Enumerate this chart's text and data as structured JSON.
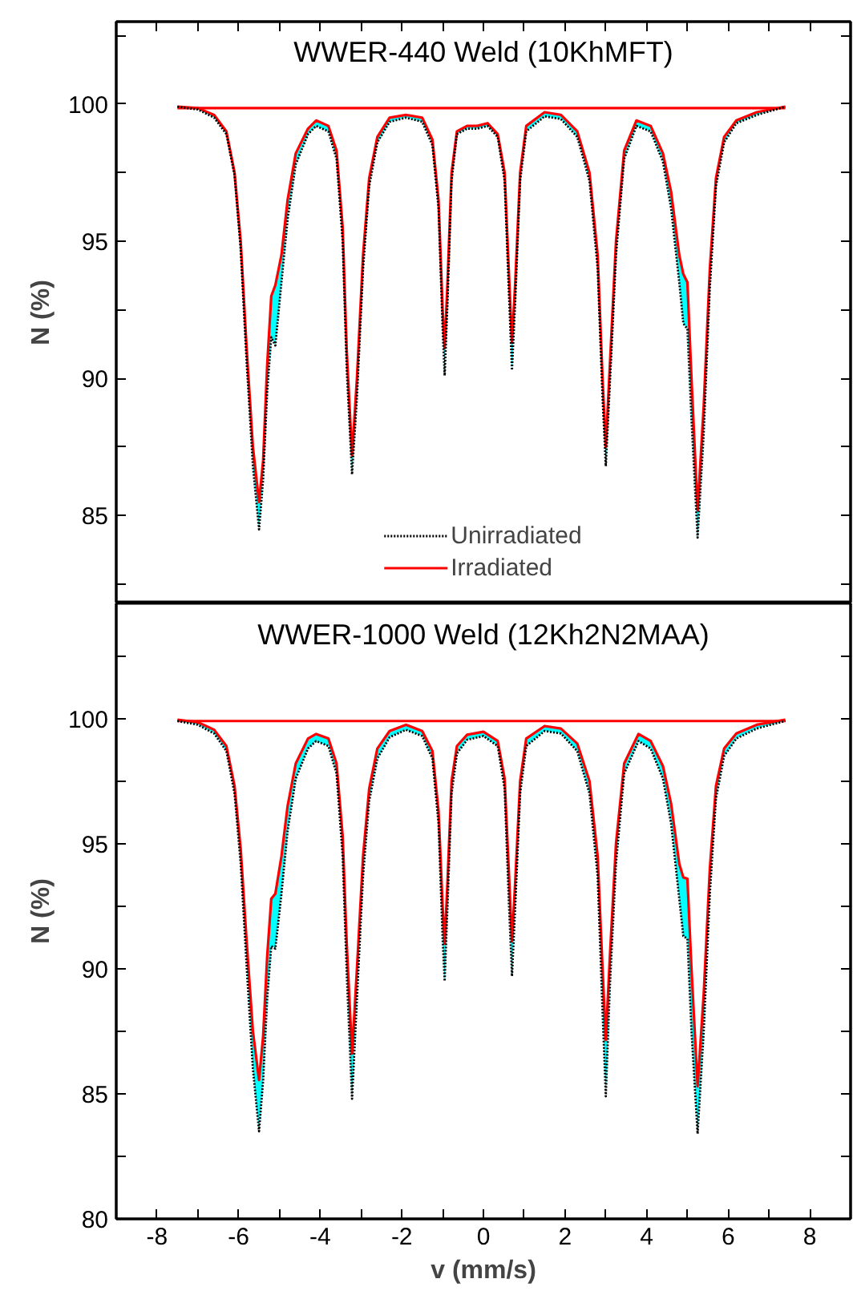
{
  "chart_data": [
    {
      "type": "line",
      "title": "WWER-440 Weld (10KhMFT)",
      "ylabel": "N (%)",
      "xlim": [
        -9,
        9
      ],
      "ylim": [
        81.8,
        103
      ],
      "xticks": [
        -8,
        {
          "value": -7,
          "label": null
        },
        -6,
        {
          "value": -5,
          "label": null
        },
        -4,
        {
          "value": -3,
          "label": null
        },
        -2,
        {
          "value": -1,
          "label": null
        },
        0,
        {
          "value": 1,
          "label": null
        },
        2,
        {
          "value": 3,
          "label": null
        },
        4,
        {
          "value": 5,
          "label": null
        },
        6,
        {
          "value": 7,
          "label": null
        },
        8
      ],
      "yticks": [
        {
          "value": 82.5,
          "label": null
        },
        85,
        {
          "value": 87.5,
          "label": null
        },
        90,
        {
          "value": 92.5,
          "label": null
        },
        95,
        {
          "value": 97.5,
          "label": null
        },
        100,
        {
          "value": 102.5,
          "label": null
        }
      ],
      "tick_labels": "y",
      "grid": false,
      "legend": "bottom",
      "x": [
        -7.5,
        -7.0,
        -6.6,
        -6.3,
        -6.1,
        -5.95,
        -5.8,
        -5.65,
        -5.5,
        -5.4,
        -5.3,
        -5.2,
        -5.1,
        -4.95,
        -4.8,
        -4.6,
        -4.3,
        -4.1,
        -3.8,
        -3.6,
        -3.45,
        -3.35,
        -3.22,
        -3.1,
        -2.95,
        -2.8,
        -2.6,
        -2.3,
        -1.9,
        -1.5,
        -1.25,
        -1.1,
        -1.0,
        -0.95,
        -0.88,
        -0.78,
        -0.65,
        -0.4,
        -0.15,
        0.1,
        0.35,
        0.52,
        0.62,
        0.7,
        0.78,
        0.9,
        1.05,
        1.5,
        1.9,
        2.3,
        2.6,
        2.8,
        2.92,
        3.0,
        3.1,
        3.25,
        3.45,
        3.75,
        4.1,
        4.4,
        4.6,
        4.8,
        4.9,
        5.0,
        5.1,
        5.25,
        5.4,
        5.55,
        5.7,
        5.9,
        6.2,
        6.7,
        7.4
      ],
      "series": [
        {
          "name": "Unirradiated",
          "color": "#000000",
          "line_style": "dotted",
          "values": [
            99.9,
            99.8,
            99.5,
            98.9,
            97.4,
            94.7,
            90.5,
            86.8,
            84.5,
            86.3,
            89.5,
            91.5,
            91.2,
            93.5,
            95.8,
            97.8,
            98.9,
            99.2,
            99.0,
            98.0,
            95,
            90.3,
            86.5,
            89.3,
            94,
            97,
            98.6,
            99.35,
            99.5,
            99.35,
            98.5,
            96.2,
            91.8,
            90.1,
            92.8,
            97.2,
            98.9,
            99.1,
            99.1,
            99.2,
            98.8,
            97.2,
            93.3,
            90.3,
            92.8,
            97.2,
            99.0,
            99.55,
            99.45,
            98.8,
            97.2,
            94,
            89.3,
            86.8,
            89.8,
            94.5,
            98.0,
            99.2,
            99.0,
            97.9,
            96.2,
            93.5,
            92.0,
            91.8,
            88.5,
            84.2,
            88,
            93.3,
            97,
            98.6,
            99.3,
            99.6,
            99.9
          ]
        },
        {
          "name": "Irradiated",
          "color": "#ff0000",
          "line_style": "solid",
          "values": [
            99.9,
            99.85,
            99.6,
            99.0,
            97.5,
            95,
            91,
            87.5,
            85.5,
            87,
            90.5,
            93.0,
            93.4,
            94.5,
            96.5,
            98.2,
            99.1,
            99.4,
            99.2,
            98.3,
            95.5,
            91,
            87.2,
            90,
            94.5,
            97.3,
            98.8,
            99.5,
            99.6,
            99.5,
            98.7,
            96.5,
            92.5,
            91.1,
            93.5,
            97.5,
            99.0,
            99.2,
            99.2,
            99.3,
            98.9,
            97.5,
            94,
            91.3,
            93.5,
            97.5,
            99.2,
            99.7,
            99.6,
            99.0,
            97.5,
            94.5,
            90,
            87.5,
            90.5,
            95,
            98.3,
            99.4,
            99.2,
            98.2,
            96.8,
            94.5,
            93.8,
            93.5,
            90,
            85.2,
            89,
            94,
            97.3,
            98.8,
            99.4,
            99.7,
            99.9
          ],
          "lower": [
            99.9,
            99.8,
            99.5,
            98.9,
            97.4,
            94.7,
            90.5,
            86.8,
            84.5,
            86.3,
            89.5,
            91.5,
            91.2,
            93.5,
            95.8,
            97.8,
            98.9,
            99.2,
            99.0,
            98.0,
            95,
            90.3,
            86.5,
            89.3,
            94,
            97,
            98.6,
            99.35,
            99.5,
            99.35,
            98.5,
            96.2,
            91.8,
            90.1,
            92.8,
            97.2,
            98.9,
            99.1,
            99.1,
            99.2,
            98.8,
            97.2,
            93.3,
            90.3,
            92.8,
            97.2,
            99.0,
            99.55,
            99.45,
            98.8,
            97.2,
            94,
            89.3,
            86.8,
            89.8,
            94.5,
            98.0,
            99.2,
            99.0,
            97.9,
            96.2,
            93.5,
            92.0,
            91.8,
            88.5,
            84.2,
            88,
            93.3,
            97,
            98.6,
            99.3,
            99.6,
            99.9
          ],
          "upper": [
            99.9,
            99.85,
            99.6,
            99.0,
            97.5,
            95,
            91,
            87.5,
            85.5,
            87,
            90.5,
            93.0,
            93.4,
            94.5,
            96.5,
            98.2,
            99.1,
            99.4,
            99.2,
            98.3,
            95.5,
            91,
            87.2,
            90,
            94.5,
            97.3,
            98.8,
            99.5,
            99.6,
            99.5,
            98.7,
            96.5,
            92.5,
            91.1,
            93.5,
            97.5,
            99.0,
            99.2,
            99.2,
            99.3,
            98.9,
            97.5,
            94,
            91.3,
            93.5,
            97.5,
            99.2,
            99.7,
            99.6,
            99.0,
            97.5,
            94.5,
            90,
            87.5,
            90.5,
            95,
            98.3,
            99.4,
            99.2,
            98.2,
            96.8,
            94.5,
            93.8,
            93.5,
            90,
            85.2,
            89,
            94,
            97.3,
            98.8,
            99.4,
            99.7,
            99.9
          ]
        }
      ],
      "ref_lines": [
        {
          "axis": "y",
          "value": 99.85,
          "color": "#ff0000",
          "line_style": "solid"
        }
      ]
    },
    {
      "type": "line",
      "title": "WWER-1000 Weld (12Kh2N2MAA)",
      "xlabel": "v (mm/s)",
      "ylabel": "N (%)",
      "xlim": [
        -9,
        9
      ],
      "ylim": [
        80,
        104.6
      ],
      "xticks": [
        -8,
        {
          "value": -7,
          "label": null
        },
        -6,
        {
          "value": -5,
          "label": null
        },
        -4,
        {
          "value": -3,
          "label": null
        },
        -2,
        {
          "value": -1,
          "label": null
        },
        0,
        {
          "value": 1,
          "label": null
        },
        2,
        {
          "value": 3,
          "label": null
        },
        4,
        {
          "value": 5,
          "label": null
        },
        6,
        {
          "value": 7,
          "label": null
        },
        8
      ],
      "yticks": [
        80,
        {
          "value": 82.5,
          "label": null
        },
        85,
        {
          "value": 87.5,
          "label": null
        },
        90,
        {
          "value": 92.5,
          "label": null
        },
        95,
        {
          "value": 97.5,
          "label": null
        },
        100,
        {
          "value": 102.5,
          "label": null
        }
      ],
      "grid": false,
      "x": [
        -7.5,
        -7.0,
        -6.6,
        -6.3,
        -6.1,
        -5.95,
        -5.8,
        -5.65,
        -5.5,
        -5.4,
        -5.3,
        -5.2,
        -5.1,
        -4.95,
        -4.8,
        -4.6,
        -4.3,
        -4.1,
        -3.8,
        -3.6,
        -3.45,
        -3.35,
        -3.22,
        -3.1,
        -2.95,
        -2.8,
        -2.6,
        -2.3,
        -1.9,
        -1.5,
        -1.25,
        -1.1,
        -1.0,
        -0.95,
        -0.88,
        -0.78,
        -0.65,
        -0.4,
        0.0,
        0.35,
        0.52,
        0.62,
        0.7,
        0.78,
        0.9,
        1.05,
        1.5,
        1.9,
        2.3,
        2.6,
        2.8,
        2.92,
        3.0,
        3.1,
        3.25,
        3.45,
        3.8,
        4.1,
        4.4,
        4.6,
        4.8,
        4.9,
        5.0,
        5.1,
        5.25,
        5.4,
        5.55,
        5.7,
        5.9,
        6.2,
        6.7,
        7.4
      ],
      "series": [
        {
          "color": "#000000",
          "line_style": "dotted",
          "values": [
            99.9,
            99.75,
            99.4,
            98.7,
            97.0,
            94.2,
            90.0,
            86.0,
            83.5,
            85.5,
            88.8,
            90.9,
            90.8,
            93.0,
            95.5,
            97.6,
            98.8,
            99.1,
            98.9,
            97.8,
            94.5,
            89.8,
            84.8,
            88.8,
            93.7,
            96.7,
            98.4,
            99.25,
            99.55,
            99.3,
            98.4,
            95.8,
            91.2,
            89.5,
            92.5,
            97.0,
            98.6,
            99.15,
            99.3,
            98.9,
            97.2,
            92.8,
            89.7,
            92.5,
            97.0,
            98.9,
            99.5,
            99.4,
            98.7,
            97.0,
            93.7,
            88.3,
            84.9,
            89.3,
            94.2,
            97.8,
            99.1,
            98.8,
            97.6,
            95.8,
            92.8,
            91.3,
            91.2,
            87.5,
            83.4,
            87.5,
            93.0,
            96.8,
            98.5,
            99.2,
            99.6,
            99.9
          ]
        },
        {
          "color": "#ff0000",
          "line_style": "solid",
          "values": [
            99.95,
            99.85,
            99.55,
            98.9,
            97.3,
            94.8,
            91,
            87.5,
            85.55,
            87.3,
            90.5,
            92.8,
            93.0,
            94.5,
            96.5,
            98.2,
            99.2,
            99.38,
            99.2,
            98.2,
            95.3,
            91,
            86.6,
            90,
            94.5,
            97.2,
            98.8,
            99.5,
            99.75,
            99.5,
            98.7,
            96.3,
            92.5,
            91.0,
            93.5,
            97.5,
            98.9,
            99.35,
            99.47,
            99.1,
            97.6,
            94,
            91.1,
            93.5,
            97.5,
            99.2,
            99.7,
            99.6,
            99.0,
            97.5,
            94.5,
            90,
            87.15,
            90.5,
            95,
            98.2,
            99.38,
            99.1,
            98.1,
            96.6,
            94.2,
            93.65,
            93.6,
            90,
            85.3,
            89,
            94,
            97.3,
            98.8,
            99.4,
            99.75,
            99.95
          ],
          "lower": [
            99.9,
            99.75,
            99.4,
            98.7,
            97.0,
            94.2,
            90.0,
            86.0,
            83.5,
            85.5,
            88.8,
            90.9,
            90.8,
            93.0,
            95.5,
            97.6,
            98.8,
            99.1,
            98.9,
            97.8,
            94.5,
            89.8,
            84.8,
            88.8,
            93.7,
            96.7,
            98.4,
            99.25,
            99.55,
            99.3,
            98.4,
            95.8,
            91.2,
            89.5,
            92.5,
            97.0,
            98.6,
            99.15,
            99.3,
            98.9,
            97.2,
            92.8,
            89.7,
            92.5,
            97.0,
            98.9,
            99.5,
            99.4,
            98.7,
            97.0,
            93.7,
            88.3,
            84.9,
            89.3,
            94.2,
            97.8,
            99.1,
            98.8,
            97.6,
            95.8,
            92.8,
            91.3,
            91.2,
            87.5,
            83.4,
            87.5,
            93.0,
            96.8,
            98.5,
            99.2,
            99.6,
            99.9
          ],
          "upper": [
            99.95,
            99.85,
            99.55,
            98.9,
            97.3,
            94.8,
            91,
            87.5,
            85.55,
            87.3,
            90.5,
            92.8,
            93.0,
            94.5,
            96.5,
            98.2,
            99.2,
            99.38,
            99.2,
            98.2,
            95.3,
            91,
            86.6,
            90,
            94.5,
            97.2,
            98.8,
            99.5,
            99.75,
            99.5,
            98.7,
            96.3,
            92.5,
            91.0,
            93.5,
            97.5,
            98.9,
            99.35,
            99.47,
            99.1,
            97.6,
            94,
            91.1,
            93.5,
            97.5,
            99.2,
            99.7,
            99.6,
            99.0,
            97.5,
            94.5,
            90,
            87.15,
            90.5,
            95,
            98.2,
            99.38,
            99.1,
            98.1,
            96.6,
            94.2,
            93.65,
            93.6,
            90,
            85.3,
            89,
            94,
            97.3,
            98.8,
            99.4,
            99.75,
            99.95
          ]
        }
      ],
      "ref_lines": [
        {
          "axis": "y",
          "value": 99.9,
          "color": "#ff0000",
          "line_style": "solid"
        }
      ]
    }
  ]
}
